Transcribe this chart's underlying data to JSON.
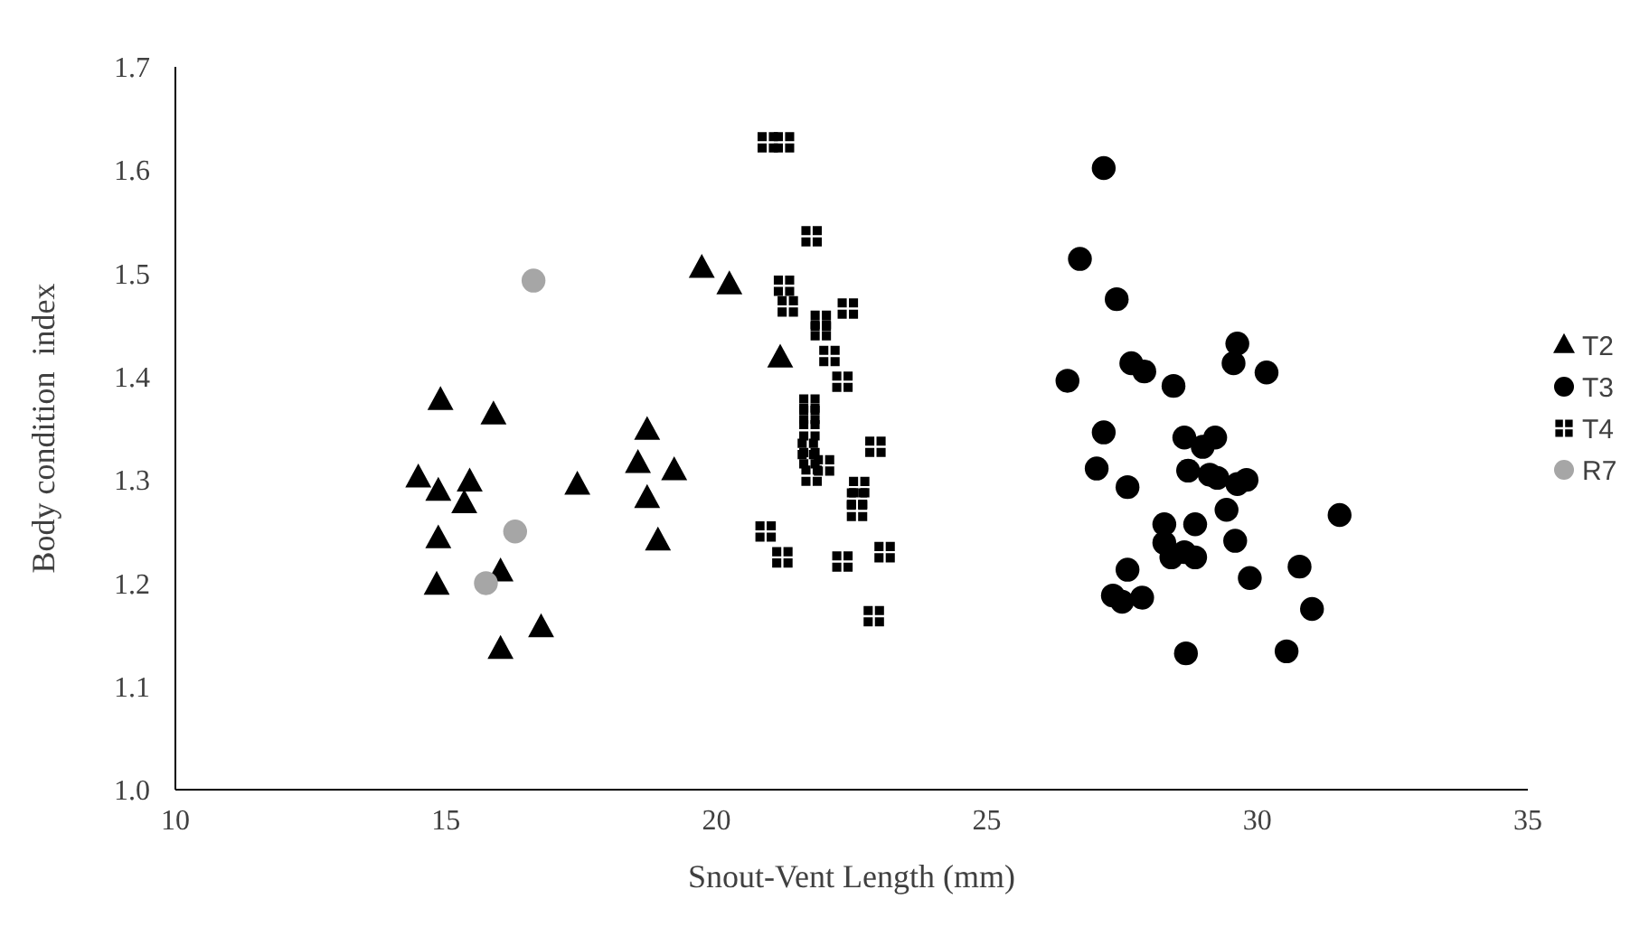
{
  "chart_data": {
    "type": "scatter",
    "xlabel": "Snout-Vent Length (mm)",
    "ylabel": "Body condition  index",
    "xlim": [
      10,
      35
    ],
    "xticks": [
      10,
      15,
      20,
      25,
      30,
      35
    ],
    "ylim": [
      1.0,
      1.7
    ],
    "yticks": [
      {
        "value": 1.0,
        "label": "1.0"
      },
      {
        "value": 1.1,
        "label": "1.1"
      },
      {
        "value": 1.2,
        "label": "1.2"
      },
      {
        "value": 1.3,
        "label": "1.3"
      },
      {
        "value": 1.4,
        "label": "1.4"
      },
      {
        "value": 1.5,
        "label": "1.5"
      },
      {
        "value": 1.6,
        "label": "1.6"
      },
      {
        "value": 1.7,
        "label": "1.7"
      }
    ],
    "grid": false,
    "legend": "right",
    "series": [
      {
        "name": "T2",
        "color": "#000000",
        "marker": "triangle",
        "x": [
          14.9,
          15.88,
          14.49,
          14.86,
          15.44,
          15.34,
          17.43,
          14.86,
          16.01,
          14.83,
          16.76,
          16.01,
          18.72,
          18.55,
          19.22,
          18.72,
          18.92,
          19.73,
          20.24,
          21.18
        ],
        "values": [
          1.377,
          1.363,
          1.302,
          1.289,
          1.298,
          1.277,
          1.295,
          1.243,
          1.211,
          1.198,
          1.157,
          1.136,
          1.348,
          1.316,
          1.309,
          1.282,
          1.241,
          1.505,
          1.489,
          1.418
        ]
      },
      {
        "name": "T3",
        "color": "#000000",
        "marker": "circle",
        "x": [
          27.16,
          26.72,
          27.4,
          29.63,
          29.56,
          27.67,
          27.91,
          30.17,
          26.49,
          28.45,
          27.16,
          28.65,
          29.22,
          28.99,
          27.03,
          28.72,
          29.12,
          29.26,
          29.63,
          29.8,
          27.6,
          29.43,
          31.52,
          28.28,
          28.85,
          28.28,
          29.59,
          28.41,
          28.65,
          28.85,
          27.6,
          29.86,
          30.78,
          27.33,
          27.5,
          27.87,
          31.01,
          28.68,
          30.54
        ],
        "values": [
          1.602,
          1.514,
          1.475,
          1.432,
          1.413,
          1.413,
          1.405,
          1.404,
          1.396,
          1.391,
          1.346,
          1.341,
          1.341,
          1.332,
          1.311,
          1.309,
          1.305,
          1.302,
          1.296,
          1.3,
          1.293,
          1.271,
          1.266,
          1.257,
          1.257,
          1.239,
          1.241,
          1.225,
          1.23,
          1.225,
          1.213,
          1.205,
          1.216,
          1.188,
          1.182,
          1.186,
          1.175,
          1.132,
          1.134
        ]
      },
      {
        "name": "T4",
        "color": "#000000",
        "marker": "square",
        "x": [
          20.95,
          21.25,
          21.76,
          21.25,
          21.32,
          22.43,
          21.93,
          21.93,
          22.09,
          22.33,
          21.72,
          21.72,
          21.72,
          22.94,
          21.69,
          21.72,
          21.99,
          21.76,
          22.64,
          22.6,
          22.6,
          20.91,
          21.22,
          22.33,
          23.11,
          22.91
        ],
        "values": [
          1.627,
          1.627,
          1.536,
          1.488,
          1.468,
          1.466,
          1.454,
          1.445,
          1.42,
          1.395,
          1.373,
          1.364,
          1.348,
          1.332,
          1.33,
          1.321,
          1.314,
          1.304,
          1.293,
          1.282,
          1.27,
          1.25,
          1.225,
          1.221,
          1.23,
          1.168
        ]
      },
      {
        "name": "R7",
        "color": "#a6a6a6",
        "marker": "circle",
        "x": [
          16.62,
          16.28,
          15.74
        ],
        "values": [
          1.493,
          1.25,
          1.2
        ]
      }
    ]
  }
}
